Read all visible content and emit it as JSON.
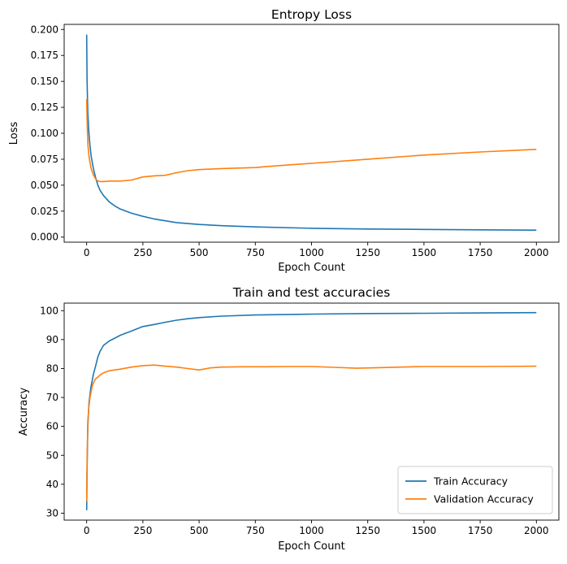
{
  "chart_data": [
    {
      "type": "line",
      "title": "Entropy Loss",
      "xlabel": "Epoch Count",
      "ylabel": "Loss",
      "xlim": [
        -100,
        2100
      ],
      "ylim": [
        -0.0049,
        0.2049
      ],
      "xticks": [
        0,
        250,
        500,
        750,
        1000,
        1250,
        1500,
        1750,
        2000
      ],
      "yticks": [
        "0.000",
        "0.025",
        "0.050",
        "0.075",
        "0.100",
        "0.125",
        "0.150",
        "0.175",
        "0.200"
      ],
      "grid": false,
      "legend": null,
      "series": [
        {
          "color": "#1f77b4",
          "x": [
            0,
            2,
            5,
            10,
            15,
            20,
            30,
            40,
            50,
            60,
            75,
            100,
            125,
            150,
            200,
            250,
            300,
            400,
            500,
            600,
            750,
            1000,
            1250,
            1500,
            1750,
            2000
          ],
          "y": [
            0.195,
            0.15,
            0.12,
            0.1,
            0.088,
            0.078,
            0.066,
            0.057,
            0.05,
            0.045,
            0.04,
            0.034,
            0.03,
            0.027,
            0.023,
            0.02,
            0.0175,
            0.014,
            0.0122,
            0.011,
            0.0098,
            0.0085,
            0.0078,
            0.0074,
            0.007,
            0.0067
          ]
        },
        {
          "color": "#ff7f0e",
          "x": [
            0,
            3,
            6,
            10,
            15,
            20,
            30,
            40,
            50,
            60,
            75,
            100,
            150,
            200,
            250,
            300,
            350,
            400,
            450,
            500,
            600,
            750,
            800,
            1000,
            1250,
            1500,
            1750,
            2000
          ],
          "y": [
            0.133,
            0.105,
            0.088,
            0.078,
            0.072,
            0.066,
            0.06,
            0.056,
            0.054,
            0.0535,
            0.0535,
            0.054,
            0.054,
            0.055,
            0.058,
            0.059,
            0.0595,
            0.062,
            0.064,
            0.065,
            0.066,
            0.067,
            0.068,
            0.071,
            0.075,
            0.079,
            0.082,
            0.0845
          ]
        }
      ]
    },
    {
      "type": "line",
      "title": "Train and test accuracies",
      "xlabel": "Epoch Count",
      "ylabel": "Accuracy",
      "xlim": [
        -100,
        2100
      ],
      "ylim": [
        27.6,
        102.6
      ],
      "xticks": [
        0,
        250,
        500,
        750,
        1000,
        1250,
        1500,
        1750,
        2000
      ],
      "yticks": [
        "30",
        "40",
        "50",
        "60",
        "70",
        "80",
        "90",
        "100"
      ],
      "grid": false,
      "legend": "lower-right",
      "series": [
        {
          "name": "Train Accuracy",
          "color": "#1f77b4",
          "x": [
            0,
            2,
            5,
            10,
            15,
            20,
            30,
            40,
            50,
            60,
            75,
            100,
            125,
            150,
            200,
            250,
            300,
            350,
            400,
            450,
            500,
            600,
            750,
            1000,
            1250,
            1500,
            1750,
            2000
          ],
          "y": [
            31,
            45,
            60,
            68,
            71,
            74,
            78,
            81,
            84,
            86,
            88,
            89.5,
            90.5,
            91.5,
            93,
            94.5,
            95.2,
            96,
            96.7,
            97.2,
            97.6,
            98.1,
            98.5,
            98.8,
            99,
            99.1,
            99.2,
            99.3
          ]
        },
        {
          "name": "Validation Accuracy",
          "color": "#ff7f0e",
          "x": [
            0,
            2,
            5,
            10,
            15,
            20,
            25,
            30,
            40,
            50,
            60,
            75,
            100,
            125,
            150,
            200,
            250,
            300,
            350,
            400,
            450,
            500,
            550,
            600,
            700,
            800,
            900,
            1000,
            1100,
            1200,
            1300,
            1400,
            1500,
            1600,
            1750,
            2000
          ],
          "y": [
            34,
            48,
            62,
            67,
            70,
            72,
            74,
            75,
            76.5,
            77,
            77.8,
            78.5,
            79.2,
            79.5,
            79.8,
            80.5,
            81,
            81.2,
            80.8,
            80.5,
            80,
            79.5,
            80.2,
            80.5,
            80.6,
            80.6,
            80.7,
            80.7,
            80.4,
            80.1,
            80.3,
            80.5,
            80.7,
            80.7,
            80.7,
            80.8
          ]
        }
      ]
    }
  ]
}
